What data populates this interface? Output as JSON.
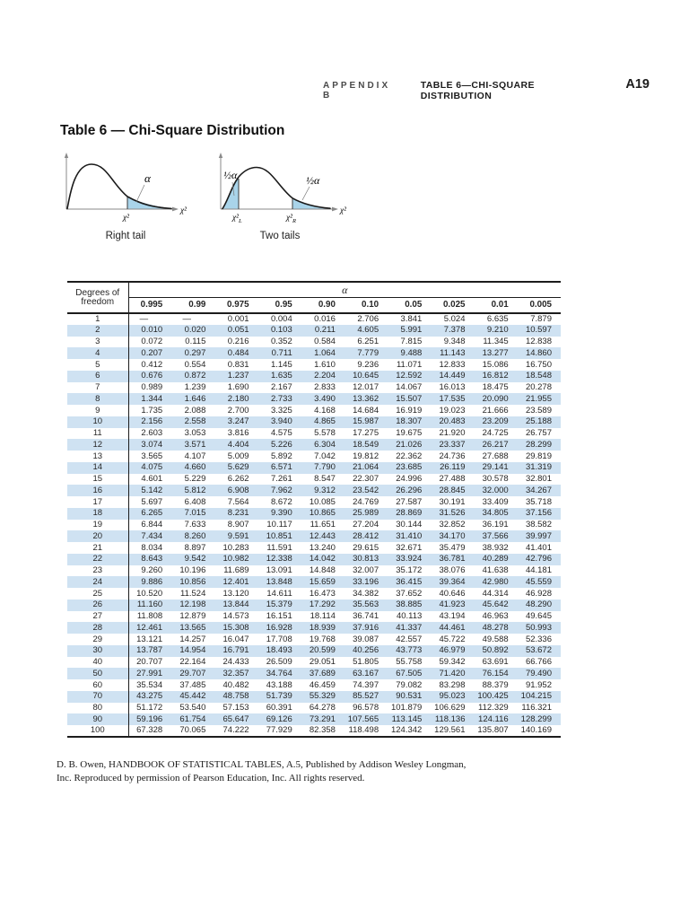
{
  "page_header": {
    "appendix": "APPENDIX B",
    "section": "TABLE 6—CHI-SQUARE DISTRIBUTION",
    "page_number": "A19"
  },
  "title": "Table 6 — Chi-Square Distribution",
  "diagrams": {
    "right_tail": {
      "caption": "Right tail",
      "alpha_label": "α",
      "axis_label": "χ²",
      "cutoff_label": "χ²"
    },
    "two_tails": {
      "caption": "Two tails",
      "left_alpha_label": "½α",
      "right_alpha_label": "½α",
      "axis_label": "χ²",
      "cutoff_chi": "χ²",
      "left_sub": "L",
      "right_sub": "R"
    }
  },
  "colors": {
    "row_stripe": "#cfe2f2",
    "tail_fill": "#a9d4ea",
    "rule": "#1c1c1c"
  },
  "table": {
    "row_header_title": "Degrees of\nfreedom",
    "alpha_header": "α",
    "columns": [
      "0.995",
      "0.99",
      "0.975",
      "0.95",
      "0.90",
      "0.10",
      "0.05",
      "0.025",
      "0.01",
      "0.005"
    ],
    "rows": [
      {
        "df": "1",
        "values": [
          "—",
          "—",
          "0.001",
          "0.004",
          "0.016",
          "2.706",
          "3.841",
          "5.024",
          "6.635",
          "7.879"
        ]
      },
      {
        "df": "2",
        "values": [
          "0.010",
          "0.020",
          "0.051",
          "0.103",
          "0.211",
          "4.605",
          "5.991",
          "7.378",
          "9.210",
          "10.597"
        ]
      },
      {
        "df": "3",
        "values": [
          "0.072",
          "0.115",
          "0.216",
          "0.352",
          "0.584",
          "6.251",
          "7.815",
          "9.348",
          "11.345",
          "12.838"
        ]
      },
      {
        "df": "4",
        "values": [
          "0.207",
          "0.297",
          "0.484",
          "0.711",
          "1.064",
          "7.779",
          "9.488",
          "11.143",
          "13.277",
          "14.860"
        ]
      },
      {
        "df": "5",
        "values": [
          "0.412",
          "0.554",
          "0.831",
          "1.145",
          "1.610",
          "9.236",
          "11.071",
          "12.833",
          "15.086",
          "16.750"
        ]
      },
      {
        "df": "6",
        "values": [
          "0.676",
          "0.872",
          "1.237",
          "1.635",
          "2.204",
          "10.645",
          "12.592",
          "14.449",
          "16.812",
          "18.548"
        ]
      },
      {
        "df": "7",
        "values": [
          "0.989",
          "1.239",
          "1.690",
          "2.167",
          "2.833",
          "12.017",
          "14.067",
          "16.013",
          "18.475",
          "20.278"
        ]
      },
      {
        "df": "8",
        "values": [
          "1.344",
          "1.646",
          "2.180",
          "2.733",
          "3.490",
          "13.362",
          "15.507",
          "17.535",
          "20.090",
          "21.955"
        ]
      },
      {
        "df": "9",
        "values": [
          "1.735",
          "2.088",
          "2.700",
          "3.325",
          "4.168",
          "14.684",
          "16.919",
          "19.023",
          "21.666",
          "23.589"
        ]
      },
      {
        "df": "10",
        "values": [
          "2.156",
          "2.558",
          "3.247",
          "3.940",
          "4.865",
          "15.987",
          "18.307",
          "20.483",
          "23.209",
          "25.188"
        ]
      },
      {
        "df": "11",
        "values": [
          "2.603",
          "3.053",
          "3.816",
          "4.575",
          "5.578",
          "17.275",
          "19.675",
          "21.920",
          "24.725",
          "26.757"
        ]
      },
      {
        "df": "12",
        "values": [
          "3.074",
          "3.571",
          "4.404",
          "5.226",
          "6.304",
          "18.549",
          "21.026",
          "23.337",
          "26.217",
          "28.299"
        ]
      },
      {
        "df": "13",
        "values": [
          "3.565",
          "4.107",
          "5.009",
          "5.892",
          "7.042",
          "19.812",
          "22.362",
          "24.736",
          "27.688",
          "29.819"
        ]
      },
      {
        "df": "14",
        "values": [
          "4.075",
          "4.660",
          "5.629",
          "6.571",
          "7.790",
          "21.064",
          "23.685",
          "26.119",
          "29.141",
          "31.319"
        ]
      },
      {
        "df": "15",
        "values": [
          "4.601",
          "5.229",
          "6.262",
          "7.261",
          "8.547",
          "22.307",
          "24.996",
          "27.488",
          "30.578",
          "32.801"
        ]
      },
      {
        "df": "16",
        "values": [
          "5.142",
          "5.812",
          "6.908",
          "7.962",
          "9.312",
          "23.542",
          "26.296",
          "28.845",
          "32.000",
          "34.267"
        ]
      },
      {
        "df": "17",
        "values": [
          "5.697",
          "6.408",
          "7.564",
          "8.672",
          "10.085",
          "24.769",
          "27.587",
          "30.191",
          "33.409",
          "35.718"
        ]
      },
      {
        "df": "18",
        "values": [
          "6.265",
          "7.015",
          "8.231",
          "9.390",
          "10.865",
          "25.989",
          "28.869",
          "31.526",
          "34.805",
          "37.156"
        ]
      },
      {
        "df": "19",
        "values": [
          "6.844",
          "7.633",
          "8.907",
          "10.117",
          "11.651",
          "27.204",
          "30.144",
          "32.852",
          "36.191",
          "38.582"
        ]
      },
      {
        "df": "20",
        "values": [
          "7.434",
          "8.260",
          "9.591",
          "10.851",
          "12.443",
          "28.412",
          "31.410",
          "34.170",
          "37.566",
          "39.997"
        ]
      },
      {
        "df": "21",
        "values": [
          "8.034",
          "8.897",
          "10.283",
          "11.591",
          "13.240",
          "29.615",
          "32.671",
          "35.479",
          "38.932",
          "41.401"
        ]
      },
      {
        "df": "22",
        "values": [
          "8.643",
          "9.542",
          "10.982",
          "12.338",
          "14.042",
          "30.813",
          "33.924",
          "36.781",
          "40.289",
          "42.796"
        ]
      },
      {
        "df": "23",
        "values": [
          "9.260",
          "10.196",
          "11.689",
          "13.091",
          "14.848",
          "32.007",
          "35.172",
          "38.076",
          "41.638",
          "44.181"
        ]
      },
      {
        "df": "24",
        "values": [
          "9.886",
          "10.856",
          "12.401",
          "13.848",
          "15.659",
          "33.196",
          "36.415",
          "39.364",
          "42.980",
          "45.559"
        ]
      },
      {
        "df": "25",
        "values": [
          "10.520",
          "11.524",
          "13.120",
          "14.611",
          "16.473",
          "34.382",
          "37.652",
          "40.646",
          "44.314",
          "46.928"
        ]
      },
      {
        "df": "26",
        "values": [
          "11.160",
          "12.198",
          "13.844",
          "15.379",
          "17.292",
          "35.563",
          "38.885",
          "41.923",
          "45.642",
          "48.290"
        ]
      },
      {
        "df": "27",
        "values": [
          "11.808",
          "12.879",
          "14.573",
          "16.151",
          "18.114",
          "36.741",
          "40.113",
          "43.194",
          "46.963",
          "49.645"
        ]
      },
      {
        "df": "28",
        "values": [
          "12.461",
          "13.565",
          "15.308",
          "16.928",
          "18.939",
          "37.916",
          "41.337",
          "44.461",
          "48.278",
          "50.993"
        ]
      },
      {
        "df": "29",
        "values": [
          "13.121",
          "14.257",
          "16.047",
          "17.708",
          "19.768",
          "39.087",
          "42.557",
          "45.722",
          "49.588",
          "52.336"
        ]
      },
      {
        "df": "30",
        "values": [
          "13.787",
          "14.954",
          "16.791",
          "18.493",
          "20.599",
          "40.256",
          "43.773",
          "46.979",
          "50.892",
          "53.672"
        ]
      },
      {
        "df": "40",
        "values": [
          "20.707",
          "22.164",
          "24.433",
          "26.509",
          "29.051",
          "51.805",
          "55.758",
          "59.342",
          "63.691",
          "66.766"
        ]
      },
      {
        "df": "50",
        "values": [
          "27.991",
          "29.707",
          "32.357",
          "34.764",
          "37.689",
          "63.167",
          "67.505",
          "71.420",
          "76.154",
          "79.490"
        ]
      },
      {
        "df": "60",
        "values": [
          "35.534",
          "37.485",
          "40.482",
          "43.188",
          "46.459",
          "74.397",
          "79.082",
          "83.298",
          "88.379",
          "91.952"
        ]
      },
      {
        "df": "70",
        "values": [
          "43.275",
          "45.442",
          "48.758",
          "51.739",
          "55.329",
          "85.527",
          "90.531",
          "95.023",
          "100.425",
          "104.215"
        ]
      },
      {
        "df": "80",
        "values": [
          "51.172",
          "53.540",
          "57.153",
          "60.391",
          "64.278",
          "96.578",
          "101.879",
          "106.629",
          "112.329",
          "116.321"
        ]
      },
      {
        "df": "90",
        "values": [
          "59.196",
          "61.754",
          "65.647",
          "69.126",
          "73.291",
          "107.565",
          "113.145",
          "118.136",
          "124.116",
          "128.299"
        ]
      },
      {
        "df": "100",
        "values": [
          "67.328",
          "70.065",
          "74.222",
          "77.929",
          "82.358",
          "118.498",
          "124.342",
          "129.561",
          "135.807",
          "140.169"
        ]
      }
    ]
  },
  "citation": {
    "line1": "D. B. Owen, HANDBOOK OF STATISTICAL TABLES, A.5, Published by Addison Wesley Longman,",
    "line2": "Inc. Reproduced by permission of Pearson Education, Inc. All rights reserved."
  }
}
